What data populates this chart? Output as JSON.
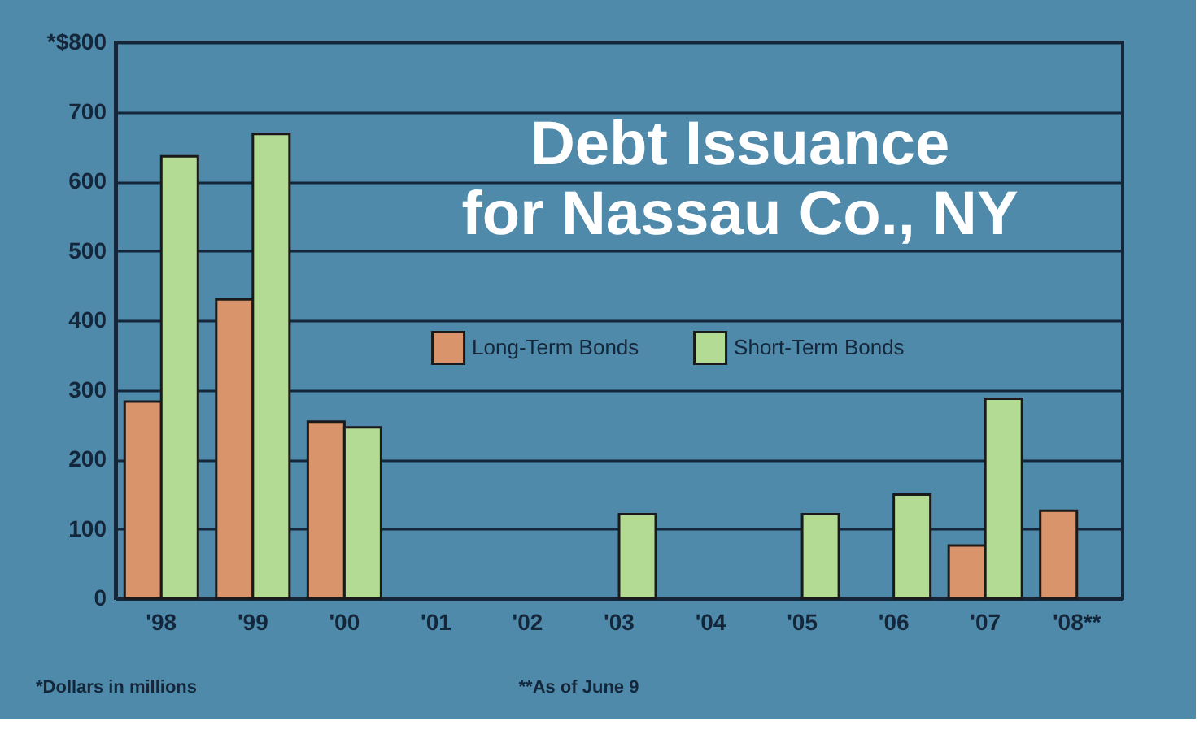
{
  "chart_data": {
    "type": "bar",
    "title": "Debt Issuance for Nassau Co., NY",
    "categories": [
      "'98",
      "'99",
      "'00",
      "'01",
      "'02",
      "'03",
      "'04",
      "'05",
      "'06",
      "'07",
      "'08**"
    ],
    "series": [
      {
        "name": "Long-Term Bonds",
        "color": "#d9946c",
        "values": [
          283,
          430,
          254,
          null,
          null,
          null,
          null,
          null,
          null,
          76,
          126
        ]
      },
      {
        "name": "Short-Term Bonds",
        "color": "#b4db93",
        "values": [
          636,
          668,
          246,
          null,
          null,
          121,
          null,
          121,
          149,
          287,
          null
        ]
      }
    ],
    "ylim": [
      0,
      800
    ],
    "yticks": [
      0,
      100,
      200,
      300,
      400,
      500,
      600,
      700,
      {
        "value": 800,
        "label": "*$800"
      }
    ],
    "grid": "y",
    "legend": "center",
    "annotations": [
      "*Dollars in millions",
      "**As of June 9"
    ]
  }
}
